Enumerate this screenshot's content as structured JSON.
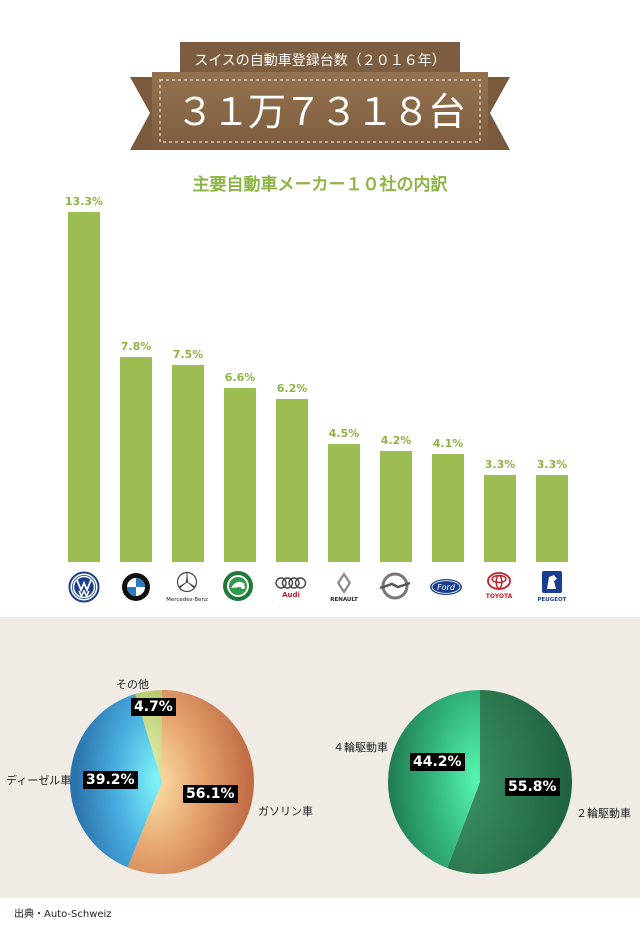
{
  "header": {
    "subtitle": "スイスの自動車登録台数（２０１６年）",
    "total": "３１万７３１８台",
    "section_title": "主要自動車メーカー１０社の内訳"
  },
  "colors": {
    "ribbon_dark": "#7a5a3c",
    "ribbon_main": "#8e6b4a",
    "bar": "#9bbd52",
    "label_green": "#8db544",
    "panel": "#f0ebe4"
  },
  "chart_data": [
    {
      "type": "bar",
      "categories": [
        "Volkswagen",
        "BMW",
        "Mercedes-Benz",
        "Skoda",
        "Audi",
        "Renault",
        "Opel",
        "Ford",
        "Toyota",
        "Peugeot"
      ],
      "values": [
        13.3,
        7.8,
        7.5,
        6.6,
        6.2,
        4.5,
        4.2,
        4.1,
        3.3,
        3.3
      ],
      "value_labels": [
        "13.3%",
        "7.8%",
        "7.5%",
        "6.6%",
        "6.2%",
        "4.5%",
        "4.2%",
        "4.1%",
        "3.3%",
        "3.3%"
      ],
      "title": "主要自動車メーカー１０社の内訳",
      "ylim": [
        0,
        13.3
      ]
    },
    {
      "type": "pie",
      "labels": [
        "ガソリン車",
        "ディーゼル車",
        "その他"
      ],
      "values": [
        56.1,
        39.2,
        4.7
      ],
      "value_labels": [
        "56.1%",
        "39.2%",
        "4.7%"
      ]
    },
    {
      "type": "pie",
      "labels": [
        "２輪駆動車",
        "４輪駆動車"
      ],
      "values": [
        55.8,
        44.2
      ],
      "value_labels": [
        "55.8%",
        "44.2%"
      ]
    }
  ],
  "logos": {
    "mercedes_text": "Mercedes-Benz",
    "audi_text": "Audi",
    "renault_text": "RENAULT",
    "ford_text": "Ford",
    "toyota_text": "TOYOTA",
    "peugeot_text": "PEUGEOT"
  },
  "source": "出典・Auto-Schweiz"
}
